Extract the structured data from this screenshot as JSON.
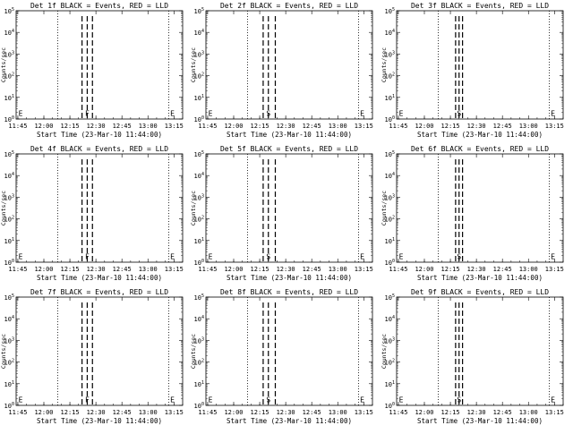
{
  "chart_data": [
    {
      "type": "line",
      "title": "Det 1f BLACK = Events, RED = LLD",
      "xlabel": "Start Time (23-Mar-10 11:44:00)",
      "ylabel": "Counts/sec",
      "x_ticks": [
        "11:45",
        "12:00",
        "12:15",
        "12:30",
        "12:45",
        "13:00",
        "13:15"
      ],
      "y_ticks": [
        "10^0",
        "10^1",
        "10^2",
        "10^3",
        "10^4",
        "10^5"
      ],
      "xlim_minutes": [
        0,
        96
      ],
      "ylim": [
        1,
        100000
      ],
      "y_scale": "log",
      "dotted_markers": [
        24,
        88
      ],
      "dashed_markers": [
        38,
        41,
        44
      ],
      "flare_labels": [
        "E",
        "F",
        "E"
      ]
    },
    {
      "type": "line",
      "title": "Det 2f BLACK = Events, RED = LLD",
      "xlabel": "Start Time (23-Mar-10 11:44:00)",
      "ylabel": "Counts/sec",
      "x_ticks": [
        "11:45",
        "12:00",
        "12:15",
        "12:30",
        "12:45",
        "13:00",
        "13:15"
      ],
      "y_ticks": [
        "10^0",
        "10^1",
        "10^2",
        "10^3",
        "10^4",
        "10^5"
      ],
      "xlim_minutes": [
        0,
        96
      ],
      "ylim": [
        1,
        100000
      ],
      "y_scale": "log",
      "dotted_markers": [
        24,
        88
      ],
      "dashed_markers": [
        33,
        36,
        40
      ],
      "flare_labels": [
        "E",
        "S",
        "E"
      ]
    },
    {
      "type": "line",
      "title": "Det 3f BLACK = Events, RED = LLD",
      "xlabel": "Start Time (23-Mar-10 11:44:00)",
      "ylabel": "Counts/sec",
      "x_ticks": [
        "11:45",
        "12:00",
        "12:15",
        "12:30",
        "12:45",
        "13:00",
        "13:15"
      ],
      "y_ticks": [
        "10^0",
        "10^1",
        "10^2",
        "10^3",
        "10^4",
        "10^5"
      ],
      "xlim_minutes": [
        0,
        96
      ],
      "ylim": [
        1,
        100000
      ],
      "y_scale": "log",
      "dotted_markers": [
        24,
        88
      ],
      "dashed_markers": [
        34,
        36,
        38
      ],
      "flare_labels": [
        "E",
        "S",
        "E"
      ]
    },
    {
      "type": "line",
      "title": "Det 4f BLACK = Events, RED = LLD",
      "xlabel": "Start Time (23-Mar-10 11:44:00)",
      "ylabel": "Counts/sec",
      "x_ticks": [
        "11:45",
        "12:00",
        "12:15",
        "12:30",
        "12:45",
        "13:00",
        "13:15"
      ],
      "y_ticks": [
        "10^0",
        "10^1",
        "10^2",
        "10^3",
        "10^4",
        "10^5"
      ],
      "xlim_minutes": [
        0,
        96
      ],
      "ylim": [
        1,
        100000
      ],
      "y_scale": "log",
      "dotted_markers": [
        24,
        88
      ],
      "dashed_markers": [
        38,
        41,
        44
      ],
      "flare_labels": [
        "E",
        "F",
        "E"
      ]
    },
    {
      "type": "line",
      "title": "Det 5f BLACK = Events, RED = LLD",
      "xlabel": "Start Time (23-Mar-10 11:44:00)",
      "ylabel": "Counts/sec",
      "x_ticks": [
        "11:45",
        "12:00",
        "12:15",
        "12:30",
        "12:45",
        "13:00",
        "13:15"
      ],
      "y_ticks": [
        "10^0",
        "10^1",
        "10^2",
        "10^3",
        "10^4",
        "10^5"
      ],
      "xlim_minutes": [
        0,
        96
      ],
      "ylim": [
        1,
        100000
      ],
      "y_scale": "log",
      "dotted_markers": [
        24,
        88
      ],
      "dashed_markers": [
        33,
        36,
        40
      ],
      "flare_labels": [
        "E",
        "S",
        "E"
      ]
    },
    {
      "type": "line",
      "title": "Det 6f BLACK = Events, RED = LLD",
      "xlabel": "Start Time (23-Mar-10 11:44:00)",
      "ylabel": "Counts/sec",
      "x_ticks": [
        "11:45",
        "12:00",
        "12:15",
        "12:30",
        "12:45",
        "13:00",
        "13:15"
      ],
      "y_ticks": [
        "10^0",
        "10^1",
        "10^2",
        "10^3",
        "10^4",
        "10^5"
      ],
      "xlim_minutes": [
        0,
        96
      ],
      "ylim": [
        1,
        100000
      ],
      "y_scale": "log",
      "dotted_markers": [
        24,
        88
      ],
      "dashed_markers": [
        34,
        36,
        38
      ],
      "flare_labels": [
        "E",
        "S",
        "E"
      ]
    },
    {
      "type": "line",
      "title": "Det 7f BLACK = Events, RED = LLD",
      "xlabel": "Start Time (23-Mar-10 11:44:00)",
      "ylabel": "Counts/sec",
      "x_ticks": [
        "11:45",
        "12:00",
        "12:15",
        "12:30",
        "12:45",
        "13:00",
        "13:15"
      ],
      "y_ticks": [
        "10^0",
        "10^1",
        "10^2",
        "10^3",
        "10^4",
        "10^5"
      ],
      "xlim_minutes": [
        0,
        96
      ],
      "ylim": [
        1,
        100000
      ],
      "y_scale": "log",
      "dotted_markers": [
        24,
        88
      ],
      "dashed_markers": [
        38,
        41,
        44
      ],
      "flare_labels": [
        "E",
        "F",
        "E"
      ]
    },
    {
      "type": "line",
      "title": "Det 8f BLACK = Events, RED = LLD",
      "xlabel": "Start Time (23-Mar-10 11:44:00)",
      "ylabel": "Counts/sec",
      "x_ticks": [
        "11:45",
        "12:00",
        "12:15",
        "12:30",
        "12:45",
        "13:00",
        "13:15"
      ],
      "y_ticks": [
        "10^0",
        "10^1",
        "10^2",
        "10^3",
        "10^4",
        "10^5"
      ],
      "xlim_minutes": [
        0,
        96
      ],
      "ylim": [
        1,
        100000
      ],
      "y_scale": "log",
      "dotted_markers": [
        24,
        88
      ],
      "dashed_markers": [
        33,
        36,
        40
      ],
      "flare_labels": [
        "E",
        "S",
        "E"
      ]
    },
    {
      "type": "line",
      "title": "Det 9f BLACK = Events, RED = LLD",
      "xlabel": "Start Time (23-Mar-10 11:44:00)",
      "ylabel": "Counts/sec",
      "x_ticks": [
        "11:45",
        "12:00",
        "12:15",
        "12:30",
        "12:45",
        "13:00",
        "13:15"
      ],
      "y_ticks": [
        "10^0",
        "10^1",
        "10^2",
        "10^3",
        "10^4",
        "10^5"
      ],
      "xlim_minutes": [
        0,
        96
      ],
      "ylim": [
        1,
        100000
      ],
      "y_scale": "log",
      "dotted_markers": [
        24,
        88
      ],
      "dashed_markers": [
        34,
        36,
        38
      ],
      "flare_labels": [
        "E",
        "S",
        "E"
      ]
    }
  ]
}
